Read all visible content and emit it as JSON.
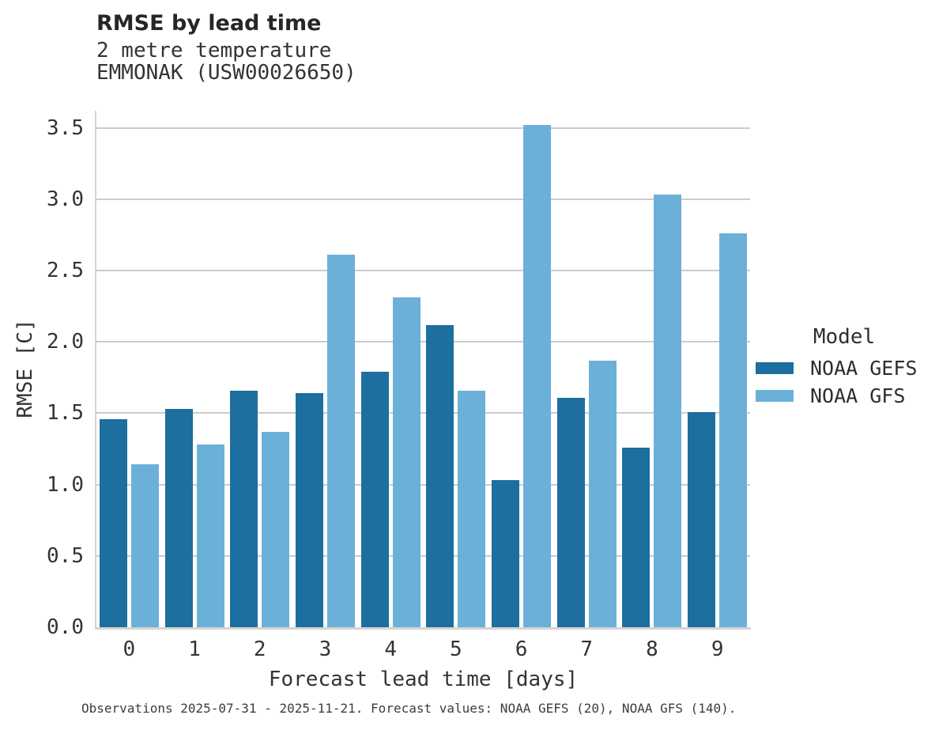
{
  "header": {
    "title": "RMSE by lead time",
    "subtitle_line1": "2 metre temperature",
    "subtitle_line2": "EMMONAK (USW00026650)"
  },
  "chart_data": {
    "type": "bar",
    "title": "RMSE by lead time",
    "subtitle": "2 metre temperature, EMMONAK (USW00026650)",
    "categories": [
      "0",
      "1",
      "2",
      "3",
      "4",
      "5",
      "6",
      "7",
      "8",
      "9"
    ],
    "series": [
      {
        "name": "NOAA GEFS",
        "color": "#1c6f9e",
        "values": [
          1.46,
          1.53,
          1.66,
          1.64,
          1.79,
          2.12,
          1.03,
          1.61,
          1.26,
          1.51
        ]
      },
      {
        "name": "NOAA GFS",
        "color": "#6bb0d9",
        "values": [
          1.14,
          1.28,
          1.37,
          2.61,
          2.31,
          1.66,
          3.52,
          1.87,
          3.03,
          2.76
        ]
      }
    ],
    "xlabel": "Forecast lead time [days]",
    "ylabel": "RMSE [C]",
    "ylim": [
      0,
      3.62
    ],
    "ytick_step": 0.5,
    "ytick_labels": [
      "0.0",
      "0.5",
      "1.0",
      "1.5",
      "2.0",
      "2.5",
      "3.0",
      "3.5"
    ],
    "grid": true,
    "legend_title": "Model",
    "legend_position": "right"
  },
  "footer": {
    "note": "Observations 2025-07-31 - 2025-11-21. Forecast values: NOAA GEFS (20), NOAA GFS (140)."
  }
}
